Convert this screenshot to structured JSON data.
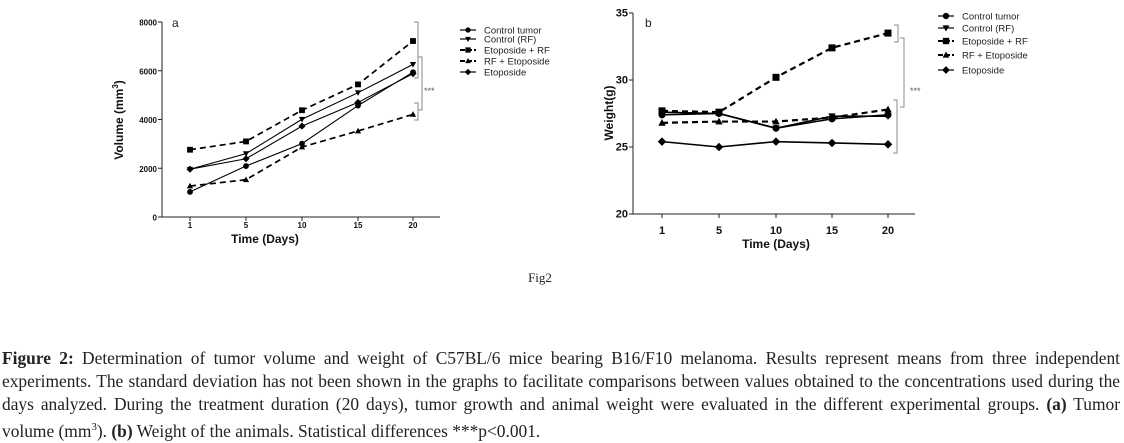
{
  "figure_label": "Fig2",
  "caption": {
    "title": "Figure 2:",
    "text_1": " Determination of tumor volume and weight of C57BL/6 mice bearing B16/F10 melanoma. Results represent means from three independent experiments. The standard deviation has not been shown in the graphs to facilitate comparisons between values obtained to the concentrations used during the days analyzed. During the treatment duration (20 days), tumor growth and animal weight were evaluated in the different experimental groups. ",
    "a_label": "(a)",
    "text_2": " Tumor volume (mm",
    "superscript": "3",
    "text_3": "). ",
    "b_label": "(b)",
    "text_4": " Weight of the animals. Statistical differences ***p<0.001."
  },
  "chart_data": [
    {
      "type": "line",
      "panel": "a",
      "title": "",
      "xlabel": "Time (Days)",
      "ylabel": "Volume (mm3)",
      "ylabel_main": "Volume (mm",
      "ylabel_sup": "3",
      "ylabel_end": ")",
      "x": [
        1,
        5,
        10,
        15,
        20
      ],
      "x_tick_labels": [
        "1",
        "5",
        "10",
        "15",
        "20"
      ],
      "ylim": [
        0,
        8000
      ],
      "y_ticks": [
        0,
        2000,
        4000,
        6000,
        8000
      ],
      "y_tick_labels": [
        "0",
        "2000",
        "4000",
        "6000",
        "8000"
      ],
      "grid": false,
      "legend_position": "right",
      "significance": "***",
      "series": [
        {
          "name": "Control tumor",
          "marker": "circle",
          "dashed": false,
          "values": [
            1030,
            2090,
            3010,
            4570,
            5940
          ]
        },
        {
          "name": "Control (RF)",
          "marker": "triangle-down",
          "dashed": false,
          "values": [
            1960,
            2600,
            4010,
            5100,
            6260
          ]
        },
        {
          "name": "Etoposide + RF",
          "marker": "square",
          "dashed": true,
          "values": [
            2760,
            3100,
            4380,
            5440,
            7220
          ]
        },
        {
          "name": "RF + Etoposide",
          "marker": "triangle-up",
          "dashed": true,
          "values": [
            1270,
            1530,
            2870,
            3530,
            4210
          ]
        },
        {
          "name": "Etoposide",
          "marker": "diamond",
          "dashed": false,
          "values": [
            1960,
            2390,
            3730,
            4700,
            5880
          ]
        }
      ]
    },
    {
      "type": "line",
      "panel": "b",
      "title": "",
      "xlabel": "Time (Days)",
      "ylabel": "Weight(g)",
      "x": [
        1,
        5,
        10,
        15,
        20
      ],
      "x_tick_labels": [
        "1",
        "5",
        "10",
        "15",
        "20"
      ],
      "ylim": [
        20,
        35
      ],
      "y_ticks": [
        20,
        25,
        30,
        35
      ],
      "y_tick_labels": [
        "20",
        "25",
        "30",
        "35"
      ],
      "grid": false,
      "legend_position": "right",
      "significance": "***",
      "series": [
        {
          "name": "Control tumor",
          "marker": "circle",
          "dashed": false,
          "values": [
            27.4,
            27.5,
            26.4,
            27.1,
            27.4
          ]
        },
        {
          "name": "Control (RF)",
          "marker": "triangle-down",
          "dashed": false,
          "values": [
            27.6,
            27.5,
            26.4,
            27.3,
            27.3
          ]
        },
        {
          "name": "Etoposide + RF",
          "marker": "square",
          "dashed": true,
          "values": [
            27.7,
            27.6,
            30.2,
            32.4,
            33.5
          ]
        },
        {
          "name": "RF + Etoposide",
          "marker": "triangle-up",
          "dashed": true,
          "values": [
            26.8,
            26.9,
            26.9,
            27.2,
            27.8
          ]
        },
        {
          "name": "Etoposide",
          "marker": "diamond",
          "dashed": false,
          "values": [
            25.4,
            25.0,
            25.4,
            25.3,
            25.2
          ]
        }
      ]
    }
  ]
}
